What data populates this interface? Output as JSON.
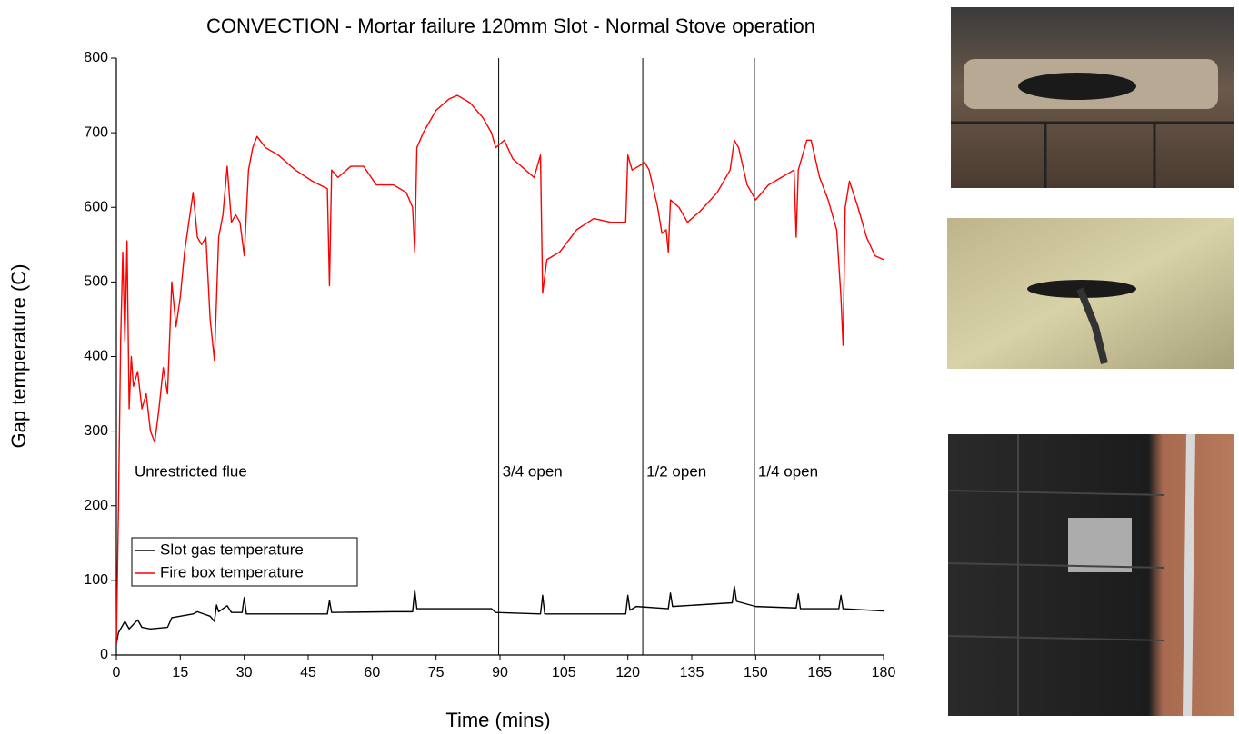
{
  "chart_data": {
    "type": "line",
    "title": "CONVECTION - Mortar failure 120mm Slot - Normal Stove operation",
    "x_label": "Time (mins)",
    "y_label": "Gap temperature (C)",
    "xlim": [
      0,
      180
    ],
    "ylim": [
      0,
      800
    ],
    "xticks": [
      0,
      15,
      30,
      45,
      60,
      75,
      90,
      105,
      120,
      135,
      150,
      165,
      180
    ],
    "yticks": [
      0,
      100,
      200,
      300,
      400,
      500,
      600,
      700,
      800
    ],
    "legend": "lower left",
    "phases": [
      {
        "label": "Unrestricted flue",
        "start": 0
      },
      {
        "label": "3/4 open",
        "start": 89.7
      },
      {
        "label": "1/2 open",
        "start": 123.5
      },
      {
        "label": "1/4 open",
        "start": 149.7
      }
    ],
    "series": [
      {
        "name": "Slot gas temperature",
        "color": "#000000",
        "x": [
          0,
          0.5,
          2,
          3,
          5,
          6,
          8,
          12,
          13,
          18,
          19,
          22,
          23,
          23.5,
          24,
          25,
          26,
          27,
          29.5,
          30,
          30.5,
          40,
          49.5,
          50,
          50.5,
          65,
          69.5,
          70,
          70.5,
          88,
          89,
          99.5,
          100,
          100.5,
          119.5,
          120,
          120.5,
          122,
          129.5,
          130,
          130.5,
          144.5,
          145,
          145.5,
          150,
          159.5,
          160,
          160.5,
          169.5,
          170,
          170.5,
          180
        ],
        "values": [
          15,
          30,
          45,
          35,
          47,
          37,
          35,
          37,
          50,
          55,
          58,
          52,
          45,
          67,
          58,
          62,
          66,
          57,
          57,
          77,
          55,
          55,
          55,
          73,
          57,
          58,
          58,
          87,
          62,
          62,
          57,
          55,
          80,
          55,
          55,
          80,
          60,
          65,
          62,
          83,
          65,
          70,
          92,
          72,
          65,
          63,
          82,
          62,
          62,
          80,
          62,
          59
        ]
      },
      {
        "name": "Fire box temperature",
        "color": "#ff0000",
        "x": [
          0,
          0.5,
          1,
          1.5,
          2,
          2.5,
          3,
          3.5,
          4,
          5,
          6,
          7,
          8,
          9,
          10,
          11,
          12,
          13,
          14,
          15,
          16,
          17,
          18,
          19,
          20,
          21,
          22,
          23,
          24,
          25,
          26,
          27,
          28,
          29,
          30,
          31,
          32,
          33,
          35,
          38,
          42,
          46,
          49.5,
          50,
          50.5,
          52,
          55,
          58,
          61,
          65,
          68,
          69.5,
          70,
          70.5,
          72,
          75,
          78,
          80,
          83,
          86,
          88,
          89,
          91,
          93,
          96,
          98,
          99.5,
          100,
          101,
          104,
          108,
          112,
          116,
          119.5,
          120,
          121,
          124,
          125,
          127,
          128,
          129,
          129.5,
          130,
          132,
          134,
          137,
          141,
          144,
          145,
          146,
          148,
          150,
          153,
          156,
          159,
          159.5,
          160,
          162,
          163,
          165,
          167,
          169,
          170,
          170.5,
          171,
          172,
          174,
          176,
          178,
          180
        ],
        "values": [
          15,
          200,
          420,
          540,
          420,
          555,
          330,
          400,
          360,
          380,
          330,
          350,
          300,
          285,
          330,
          385,
          350,
          500,
          440,
          480,
          540,
          580,
          620,
          560,
          550,
          560,
          450,
          395,
          560,
          590,
          655,
          580,
          590,
          580,
          535,
          650,
          680,
          695,
          680,
          670,
          650,
          635,
          625,
          495,
          650,
          640,
          655,
          655,
          630,
          630,
          620,
          600,
          540,
          680,
          700,
          730,
          745,
          750,
          740,
          720,
          700,
          680,
          690,
          665,
          650,
          640,
          670,
          485,
          530,
          540,
          570,
          585,
          580,
          580,
          670,
          650,
          660,
          650,
          600,
          565,
          570,
          540,
          610,
          600,
          580,
          595,
          620,
          650,
          690,
          680,
          630,
          610,
          630,
          640,
          650,
          560,
          650,
          690,
          690,
          640,
          610,
          570,
          480,
          415,
          600,
          635,
          600,
          560,
          535,
          530
        ]
      }
    ]
  }
}
